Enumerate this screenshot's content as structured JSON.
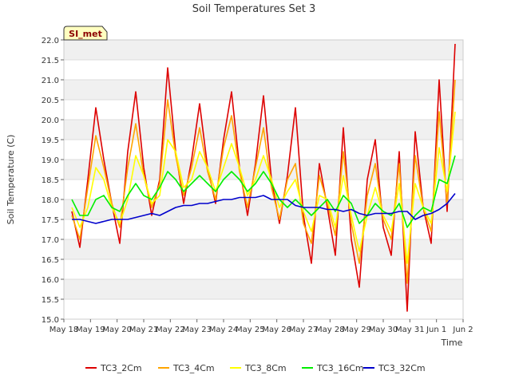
{
  "chart_data": {
    "type": "line",
    "title": "Soil Temperatures Set 3",
    "xlabel": "Time",
    "ylabel": "Soil Temperature (C)",
    "site_label": "SI_met",
    "ylim": [
      15.0,
      22.0
    ],
    "yticks": [
      "15.0",
      "15.5",
      "16.0",
      "16.5",
      "17.0",
      "17.5",
      "18.0",
      "18.5",
      "19.0",
      "19.5",
      "20.0",
      "20.5",
      "21.0",
      "21.5",
      "22.0"
    ],
    "xlim": [
      0,
      15
    ],
    "xticks": [
      "May 18",
      "May 19",
      "May 20",
      "May 21",
      "May 22",
      "May 23",
      "May 24",
      "May 25",
      "May 26",
      "May 27",
      "May 28",
      "May 29",
      "May 30",
      "May 31",
      "Jun 1",
      "Jun 2"
    ],
    "x_unit": "days since May 18",
    "grid": true,
    "legend_position": "bottom",
    "series": [
      {
        "name": "TC3_2Cm",
        "color": "#dd0000",
        "x": [
          0.3,
          0.6,
          0.9,
          1.2,
          1.5,
          1.8,
          2.1,
          2.4,
          2.7,
          3.0,
          3.3,
          3.6,
          3.9,
          4.2,
          4.5,
          4.8,
          5.1,
          5.4,
          5.7,
          6.0,
          6.3,
          6.6,
          6.9,
          7.2,
          7.5,
          7.8,
          8.1,
          8.4,
          8.7,
          9.0,
          9.3,
          9.6,
          9.9,
          10.2,
          10.5,
          10.8,
          11.1,
          11.4,
          11.7,
          12.0,
          12.3,
          12.6,
          12.9,
          13.2,
          13.5,
          13.8,
          14.1,
          14.4,
          14.7
        ],
        "y": [
          17.7,
          16.8,
          18.5,
          20.3,
          19.0,
          17.9,
          16.9,
          19.2,
          20.7,
          18.8,
          17.6,
          18.5,
          21.3,
          19.2,
          17.9,
          19.0,
          20.4,
          18.8,
          17.9,
          19.5,
          20.7,
          18.8,
          17.6,
          18.9,
          20.6,
          18.5,
          17.4,
          18.6,
          20.3,
          17.6,
          16.4,
          18.9,
          17.8,
          16.6,
          19.8,
          17.0,
          15.8,
          18.5,
          19.5,
          17.3,
          16.6,
          19.2,
          15.2,
          19.7,
          17.8,
          16.9,
          21.0,
          17.7,
          21.9
        ]
      },
      {
        "name": "TC3_4Cm",
        "color": "#ffa500",
        "x": [
          0.3,
          0.6,
          0.9,
          1.2,
          1.5,
          1.8,
          2.1,
          2.4,
          2.7,
          3.0,
          3.3,
          3.6,
          3.9,
          4.2,
          4.5,
          4.8,
          5.1,
          5.4,
          5.7,
          6.0,
          6.3,
          6.6,
          6.9,
          7.2,
          7.5,
          7.8,
          8.1,
          8.4,
          8.7,
          9.0,
          9.3,
          9.6,
          9.9,
          10.2,
          10.5,
          10.8,
          11.1,
          11.4,
          11.7,
          12.0,
          12.3,
          12.6,
          12.9,
          13.2,
          13.5,
          13.8,
          14.1,
          14.4,
          14.7
        ],
        "y": [
          17.6,
          17.0,
          18.3,
          19.6,
          18.8,
          17.9,
          17.3,
          18.8,
          19.9,
          18.6,
          17.8,
          18.4,
          20.5,
          19.1,
          18.1,
          18.8,
          19.8,
          18.7,
          18.0,
          19.3,
          20.1,
          18.7,
          17.8,
          18.8,
          19.8,
          18.3,
          17.5,
          18.5,
          18.9,
          17.4,
          16.9,
          18.6,
          17.9,
          17.1,
          19.2,
          17.4,
          16.4,
          18.1,
          18.9,
          17.5,
          17.0,
          18.9,
          15.9,
          19.1,
          17.8,
          17.2,
          20.2,
          17.9,
          21.0
        ]
      },
      {
        "name": "TC3_8Cm",
        "color": "#ffff00",
        "x": [
          0.3,
          0.6,
          0.9,
          1.2,
          1.5,
          1.8,
          2.1,
          2.4,
          2.7,
          3.0,
          3.3,
          3.6,
          3.9,
          4.2,
          4.5,
          4.8,
          5.1,
          5.4,
          5.7,
          6.0,
          6.3,
          6.6,
          6.9,
          7.2,
          7.5,
          7.8,
          8.1,
          8.4,
          8.7,
          9.0,
          9.3,
          9.6,
          9.9,
          10.2,
          10.5,
          10.8,
          11.1,
          11.4,
          11.7,
          12.0,
          12.3,
          12.6,
          12.9,
          13.2,
          13.5,
          13.8,
          14.1,
          14.4,
          14.7
        ],
        "y": [
          17.8,
          17.3,
          17.8,
          18.8,
          18.5,
          17.8,
          17.4,
          18.0,
          19.1,
          18.6,
          17.9,
          18.1,
          19.5,
          19.2,
          18.3,
          18.5,
          19.2,
          18.8,
          18.2,
          18.8,
          19.4,
          18.8,
          18.1,
          18.5,
          19.1,
          18.5,
          17.8,
          18.2,
          18.5,
          17.7,
          17.2,
          18.1,
          18.0,
          17.3,
          18.6,
          17.6,
          16.7,
          17.6,
          18.3,
          17.6,
          17.2,
          18.4,
          16.4,
          18.4,
          17.8,
          17.4,
          19.3,
          18.2,
          20.2
        ]
      },
      {
        "name": "TC3_16Cm",
        "color": "#00ee00",
        "x": [
          0.3,
          0.6,
          0.9,
          1.2,
          1.5,
          1.8,
          2.1,
          2.4,
          2.7,
          3.0,
          3.3,
          3.6,
          3.9,
          4.2,
          4.5,
          4.8,
          5.1,
          5.4,
          5.7,
          6.0,
          6.3,
          6.6,
          6.9,
          7.2,
          7.5,
          7.8,
          8.1,
          8.4,
          8.7,
          9.0,
          9.3,
          9.6,
          9.9,
          10.2,
          10.5,
          10.8,
          11.1,
          11.4,
          11.7,
          12.0,
          12.3,
          12.6,
          12.9,
          13.2,
          13.5,
          13.8,
          14.1,
          14.4,
          14.7
        ],
        "y": [
          18.0,
          17.6,
          17.6,
          18.0,
          18.1,
          17.8,
          17.7,
          18.1,
          18.4,
          18.1,
          18.0,
          18.3,
          18.7,
          18.5,
          18.2,
          18.4,
          18.6,
          18.4,
          18.2,
          18.5,
          18.7,
          18.5,
          18.2,
          18.4,
          18.7,
          18.4,
          18.0,
          17.8,
          18.0,
          17.8,
          17.6,
          17.8,
          18.0,
          17.7,
          18.1,
          17.9,
          17.4,
          17.6,
          17.9,
          17.7,
          17.6,
          17.9,
          17.3,
          17.6,
          17.8,
          17.7,
          18.5,
          18.4,
          19.1
        ]
      },
      {
        "name": "TC3_32Cm",
        "color": "#0000cc",
        "x": [
          0.3,
          0.6,
          0.9,
          1.2,
          1.5,
          1.8,
          2.1,
          2.4,
          2.7,
          3.0,
          3.3,
          3.6,
          3.9,
          4.2,
          4.5,
          4.8,
          5.1,
          5.4,
          5.7,
          6.0,
          6.3,
          6.6,
          6.9,
          7.2,
          7.5,
          7.8,
          8.1,
          8.4,
          8.7,
          9.0,
          9.3,
          9.6,
          9.9,
          10.2,
          10.5,
          10.8,
          11.1,
          11.4,
          11.7,
          12.0,
          12.3,
          12.6,
          12.9,
          13.2,
          13.5,
          13.8,
          14.1,
          14.4,
          14.7
        ],
        "y": [
          17.5,
          17.5,
          17.45,
          17.4,
          17.45,
          17.5,
          17.5,
          17.5,
          17.55,
          17.6,
          17.65,
          17.6,
          17.7,
          17.8,
          17.85,
          17.85,
          17.9,
          17.9,
          17.95,
          18.0,
          18.0,
          18.05,
          18.05,
          18.05,
          18.1,
          18.0,
          18.0,
          18.0,
          17.85,
          17.8,
          17.8,
          17.8,
          17.75,
          17.75,
          17.7,
          17.75,
          17.65,
          17.6,
          17.65,
          17.65,
          17.65,
          17.7,
          17.7,
          17.5,
          17.6,
          17.65,
          17.75,
          17.9,
          18.15
        ]
      }
    ]
  }
}
